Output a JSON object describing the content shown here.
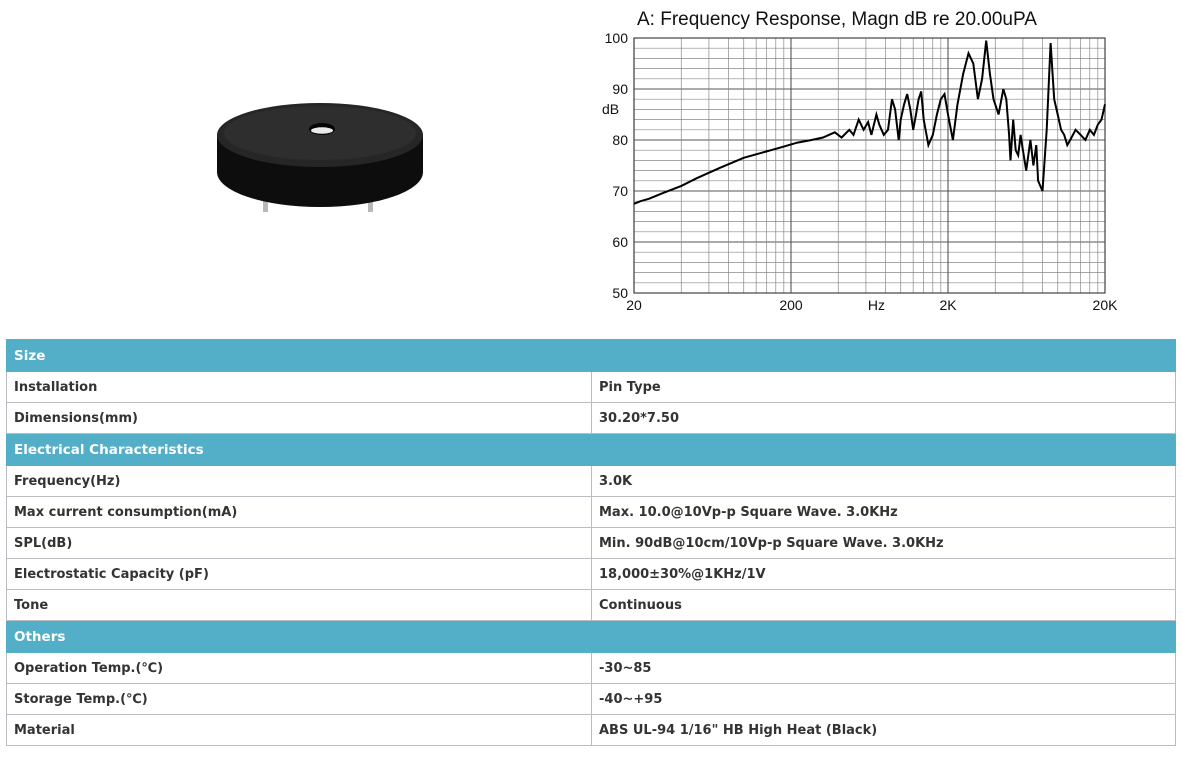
{
  "product_image": {
    "alt": "Piezo buzzer (black round housing, two pins)"
  },
  "chart_data": {
    "type": "line",
    "title": "A: Frequency Response, Magn dB re 20.00uPA",
    "xlabel": "Hz",
    "ylabel": "dB",
    "x_scale": "log",
    "xlim": [
      20,
      20000
    ],
    "ylim": [
      50,
      100
    ],
    "x_tick_labels": [
      "20",
      "200",
      "Hz",
      "2K",
      "20K"
    ],
    "y_tick_labels": [
      "100",
      "90",
      "80",
      "70",
      "60",
      "50"
    ],
    "grid": true,
    "series": [
      {
        "color": "#000000",
        "x": [
          20,
          22,
          25,
          30,
          40,
          50,
          70,
          100,
          130,
          170,
          220,
          270,
          320,
          380,
          420,
          470,
          500,
          540,
          580,
          620,
          650,
          700,
          730,
          780,
          830,
          880,
          920,
          970,
          1000,
          1050,
          1100,
          1150,
          1200,
          1250,
          1300,
          1350,
          1400,
          1500,
          1600,
          1700,
          1800,
          1900,
          2000,
          2150,
          2300,
          2500,
          2700,
          2900,
          3100,
          3300,
          3500,
          3700,
          3900,
          4200,
          4500,
          4700,
          4900,
          5000,
          5200,
          5400,
          5600,
          5800,
          6000,
          6300,
          6700,
          7000,
          7300,
          7500,
          8000,
          8500,
          9000,
          9500,
          10000,
          10500,
          11000,
          11500,
          12000,
          13000,
          14000,
          15000,
          16000,
          17000,
          18000,
          19000,
          20000
        ],
        "y": [
          67.5,
          68,
          68.5,
          69.5,
          71,
          72.5,
          74.5,
          76.5,
          77.5,
          78.5,
          79.5,
          80,
          80.5,
          81.5,
          80.5,
          82,
          81,
          84,
          82,
          83.5,
          81,
          85,
          83,
          81,
          82,
          88,
          86,
          80,
          84,
          87,
          89,
          86,
          82,
          85,
          88,
          89.5,
          84,
          79,
          81,
          85,
          88,
          89,
          85,
          80,
          87,
          93,
          97,
          95,
          88,
          92,
          99.5,
          93,
          88,
          85,
          90,
          88,
          81,
          76,
          84,
          78,
          77,
          81,
          78,
          74,
          80,
          75,
          79,
          72,
          70,
          82,
          99,
          88,
          85,
          82,
          81,
          79,
          80,
          82,
          81,
          80,
          82,
          81,
          83,
          84,
          87
        ]
      }
    ]
  },
  "table": {
    "sections": [
      {
        "title": "Size",
        "rows": [
          {
            "label": "Installation",
            "value": "Pin Type"
          },
          {
            "label": "Dimensions(mm)",
            "value": "30.20*7.50"
          }
        ]
      },
      {
        "title": "Electrical Characteristics",
        "rows": [
          {
            "label": "Frequency(Hz)",
            "value": "3.0K"
          },
          {
            "label": "Max current consumption(mA)",
            "value": "Max. 10.0@10Vp-p Square Wave. 3.0KHz"
          },
          {
            "label": "SPL(dB)",
            "value": "Min. 90dB@10cm/10Vp-p Square Wave. 3.0KHz"
          },
          {
            "label": "Electrostatic Capacity (pF)",
            "value": "18,000±30%@1KHz/1V"
          },
          {
            "label": "Tone",
            "value": "Continuous"
          }
        ]
      },
      {
        "title": "Others",
        "rows": [
          {
            "label": "Operation Temp.(℃)",
            "value": "-30~85"
          },
          {
            "label": "Storage Temp.(℃)",
            "value": "-40~+95"
          },
          {
            "label": "Material",
            "value": "ABS UL-94 1/16\" HB High Heat (Black)"
          }
        ]
      }
    ]
  },
  "colors": {
    "section_header": "#53afc8",
    "section_text": "#ffffff",
    "border": "#b9bcc0",
    "text": "#333333"
  }
}
